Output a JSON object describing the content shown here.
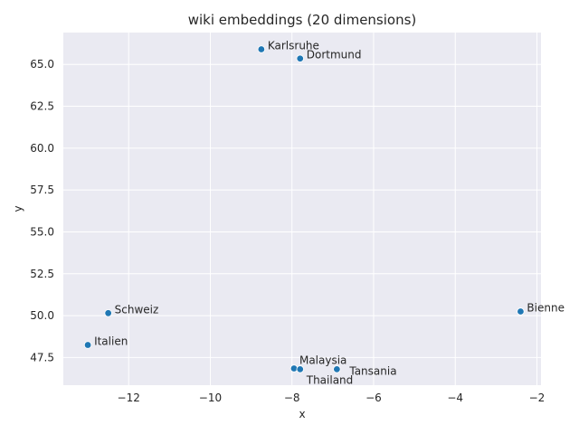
{
  "chart_data": {
    "type": "scatter",
    "title": "wiki embeddings (20 dimensions)",
    "xlabel": "x",
    "ylabel": "y",
    "xlim": [
      -13.6,
      -1.9
    ],
    "ylim": [
      45.85,
      66.9
    ],
    "xticks": [
      -12,
      -10,
      -8,
      -6,
      -4,
      -2
    ],
    "xtick_labels": [
      "−12",
      "−10",
      "−8",
      "−6",
      "−4",
      "−2"
    ],
    "yticks": [
      47.5,
      50.0,
      52.5,
      55.0,
      57.5,
      60.0,
      62.5,
      65.0
    ],
    "ytick_labels": [
      "47.5",
      "50.0",
      "52.5",
      "55.0",
      "57.5",
      "60.0",
      "62.5",
      "65.0"
    ],
    "grid": true,
    "color": "#1f77b4",
    "points": [
      {
        "label": "Karlsruhe",
        "x": -8.75,
        "y": 65.9
      },
      {
        "label": "Dortmund",
        "x": -7.8,
        "y": 65.35
      },
      {
        "label": "Schweiz",
        "x": -12.5,
        "y": 50.15
      },
      {
        "label": "Italien",
        "x": -13.0,
        "y": 48.25
      },
      {
        "label": "Bienne",
        "x": -2.4,
        "y": 50.25
      },
      {
        "label": "Malaysia",
        "x": -7.95,
        "y": 46.85
      },
      {
        "label": "Thailand",
        "x": -7.8,
        "y": 46.8
      },
      {
        "label": "Tansania",
        "x": -6.9,
        "y": 46.8
      }
    ]
  }
}
